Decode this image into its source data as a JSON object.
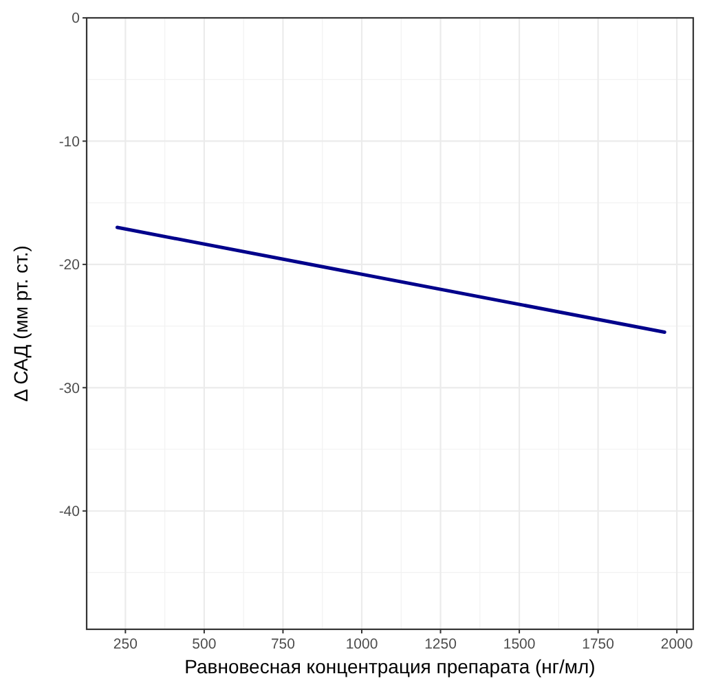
{
  "chart_data": {
    "type": "line",
    "xlabel": "Равновесная концентрация препарата (нг/мл)",
    "ylabel": "Δ САД (мм рт. ст.)",
    "x": [
      224,
      1961
    ],
    "series": [
      {
        "color": "#00008b",
        "values": [
          -17.0,
          -25.5
        ]
      }
    ],
    "xlim": [
      127,
      2052
    ],
    "xticks": [
      250,
      500,
      750,
      1000,
      1250,
      1500,
      1750,
      2000
    ],
    "ylim": [
      -49.6,
      0
    ],
    "yticks": [
      0,
      -10,
      -20,
      -30,
      -40
    ],
    "grid": true,
    "marker": "none",
    "line_style": "solid"
  }
}
